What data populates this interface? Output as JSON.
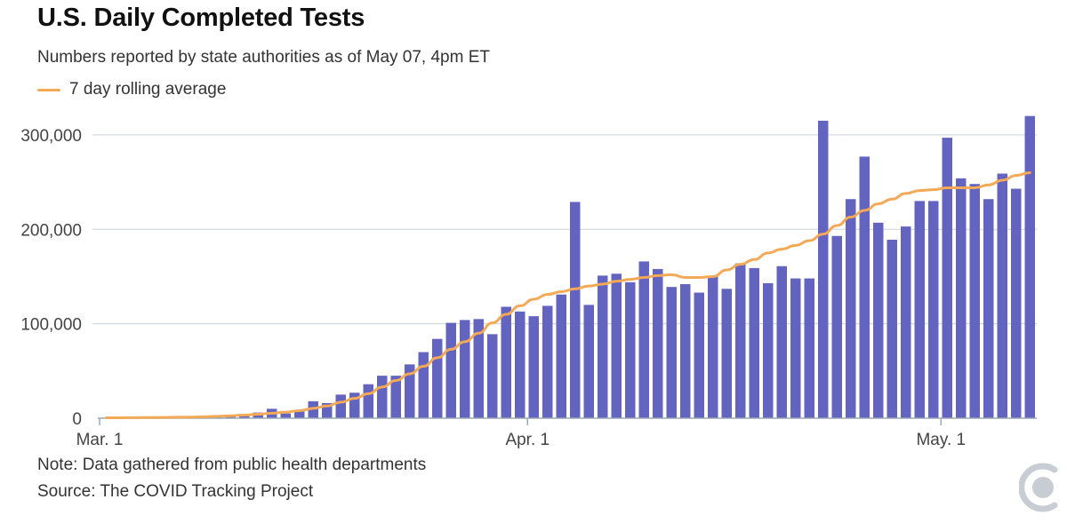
{
  "chart_data": {
    "type": "bar",
    "title": "U.S. Daily Completed Tests",
    "subtitle": "Numbers reported by state authorities as of May 07, 4pm ET",
    "legend": [
      {
        "label": "7 day rolling average",
        "kind": "line"
      }
    ],
    "xlabel": "",
    "ylabel": "",
    "ylim": [
      0,
      330000
    ],
    "yticks": [
      {
        "value": 0,
        "label": "0"
      },
      {
        "value": 100000,
        "label": "100,000"
      },
      {
        "value": 200000,
        "label": "200,000"
      },
      {
        "value": 300000,
        "label": "300,000"
      }
    ],
    "xticks": [
      {
        "index": 0,
        "label": "Mar. 1"
      },
      {
        "index": 31,
        "label": "Apr. 1"
      },
      {
        "index": 61,
        "label": "May. 1"
      }
    ],
    "categories": [
      "Mar 1",
      "Mar 2",
      "Mar 3",
      "Mar 4",
      "Mar 5",
      "Mar 6",
      "Mar 7",
      "Mar 8",
      "Mar 9",
      "Mar 10",
      "Mar 11",
      "Mar 12",
      "Mar 13",
      "Mar 14",
      "Mar 15",
      "Mar 16",
      "Mar 17",
      "Mar 18",
      "Mar 19",
      "Mar 20",
      "Mar 21",
      "Mar 22",
      "Mar 23",
      "Mar 24",
      "Mar 25",
      "Mar 26",
      "Mar 27",
      "Mar 28",
      "Mar 29",
      "Mar 30",
      "Mar 31",
      "Apr 1",
      "Apr 2",
      "Apr 3",
      "Apr 4",
      "Apr 5",
      "Apr 6",
      "Apr 7",
      "Apr 8",
      "Apr 9",
      "Apr 10",
      "Apr 11",
      "Apr 12",
      "Apr 13",
      "Apr 14",
      "Apr 15",
      "Apr 16",
      "Apr 17",
      "Apr 18",
      "Apr 19",
      "Apr 20",
      "Apr 21",
      "Apr 22",
      "Apr 23",
      "Apr 24",
      "Apr 25",
      "Apr 26",
      "Apr 27",
      "Apr 28",
      "Apr 29",
      "Apr 30",
      "May 1",
      "May 2",
      "May 3",
      "May 4",
      "May 5",
      "May 6",
      "May 7"
    ],
    "series": [
      {
        "name": "Daily completed tests",
        "kind": "bar",
        "color": "#6363c0",
        "values": [
          500,
          500,
          600,
          800,
          900,
          1200,
          1500,
          1800,
          2500,
          3500,
          4500,
          6000,
          10000,
          5000,
          8000,
          18000,
          16000,
          25000,
          27000,
          36000,
          45000,
          45000,
          57000,
          70000,
          84000,
          101000,
          104000,
          105000,
          89000,
          118000,
          113000,
          108000,
          119000,
          131000,
          229000,
          120000,
          151000,
          153000,
          144000,
          166000,
          158000,
          139000,
          142000,
          133000,
          150000,
          137000,
          164000,
          159000,
          143000,
          161000,
          148000,
          148000,
          315000,
          193000,
          232000,
          277000,
          207000,
          189000,
          203000,
          230000,
          230000,
          297000,
          254000,
          248000,
          232000,
          259000,
          243000,
          320000
        ]
      },
      {
        "name": "7 day rolling average",
        "kind": "line",
        "color": "#f4a957",
        "values": [
          500,
          500,
          600,
          700,
          800,
          1000,
          1200,
          1500,
          2000,
          2600,
          3300,
          4200,
          5300,
          6500,
          8000,
          10500,
          13000,
          17000,
          21000,
          26000,
          33000,
          40000,
          47000,
          55000,
          64000,
          73000,
          81000,
          90000,
          101000,
          110000,
          119000,
          126000,
          131000,
          134000,
          137000,
          140000,
          142000,
          145000,
          147000,
          149000,
          151000,
          152000,
          149000,
          149000,
          150000,
          157000,
          163000,
          168000,
          175000,
          179000,
          183000,
          188000,
          195000,
          204000,
          213000,
          220000,
          227000,
          232000,
          238000,
          241000,
          242000,
          244000,
          244000,
          244000,
          247000,
          252000,
          257000,
          260000
        ]
      }
    ],
    "colors": {
      "bar": "#6363c0",
      "average_line": "#f4a957",
      "grid": "#c9d3dc",
      "axis": "#9aa8b4"
    }
  },
  "footer": {
    "note": "Note: Data gathered from public health departments",
    "source": "Source: The COVID Tracking Project"
  },
  "logo": {
    "icon": "covid-tracking-logo-icon"
  }
}
